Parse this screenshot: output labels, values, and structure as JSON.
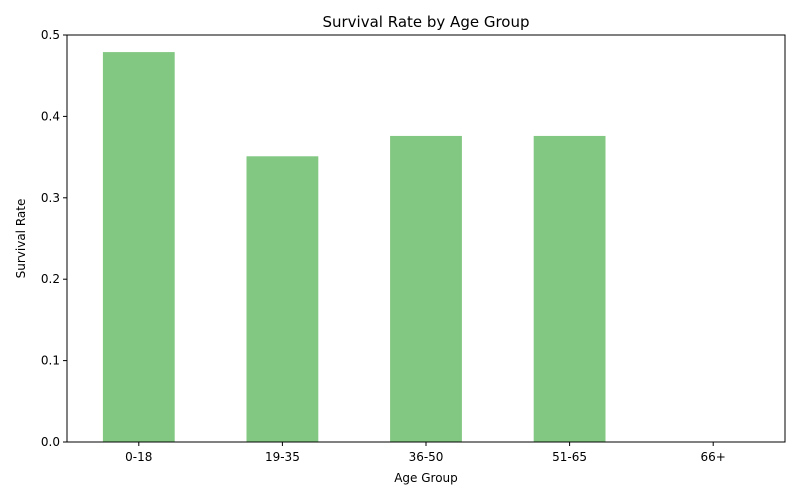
{
  "chart_data": {
    "type": "bar",
    "title": "Survival Rate by Age Group",
    "xlabel": "Age Group",
    "ylabel": "Survival Rate",
    "categories": [
      "0-18",
      "19-35",
      "36-50",
      "51-65",
      "66+"
    ],
    "values": [
      0.479,
      0.351,
      0.376,
      0.376,
      0.0
    ],
    "ylim": [
      0,
      0.5
    ],
    "yticks": [
      "0.0",
      "0.1",
      "0.2",
      "0.3",
      "0.4",
      "0.5"
    ],
    "bar_color": "#82c782",
    "grid": false,
    "legend": "none"
  }
}
